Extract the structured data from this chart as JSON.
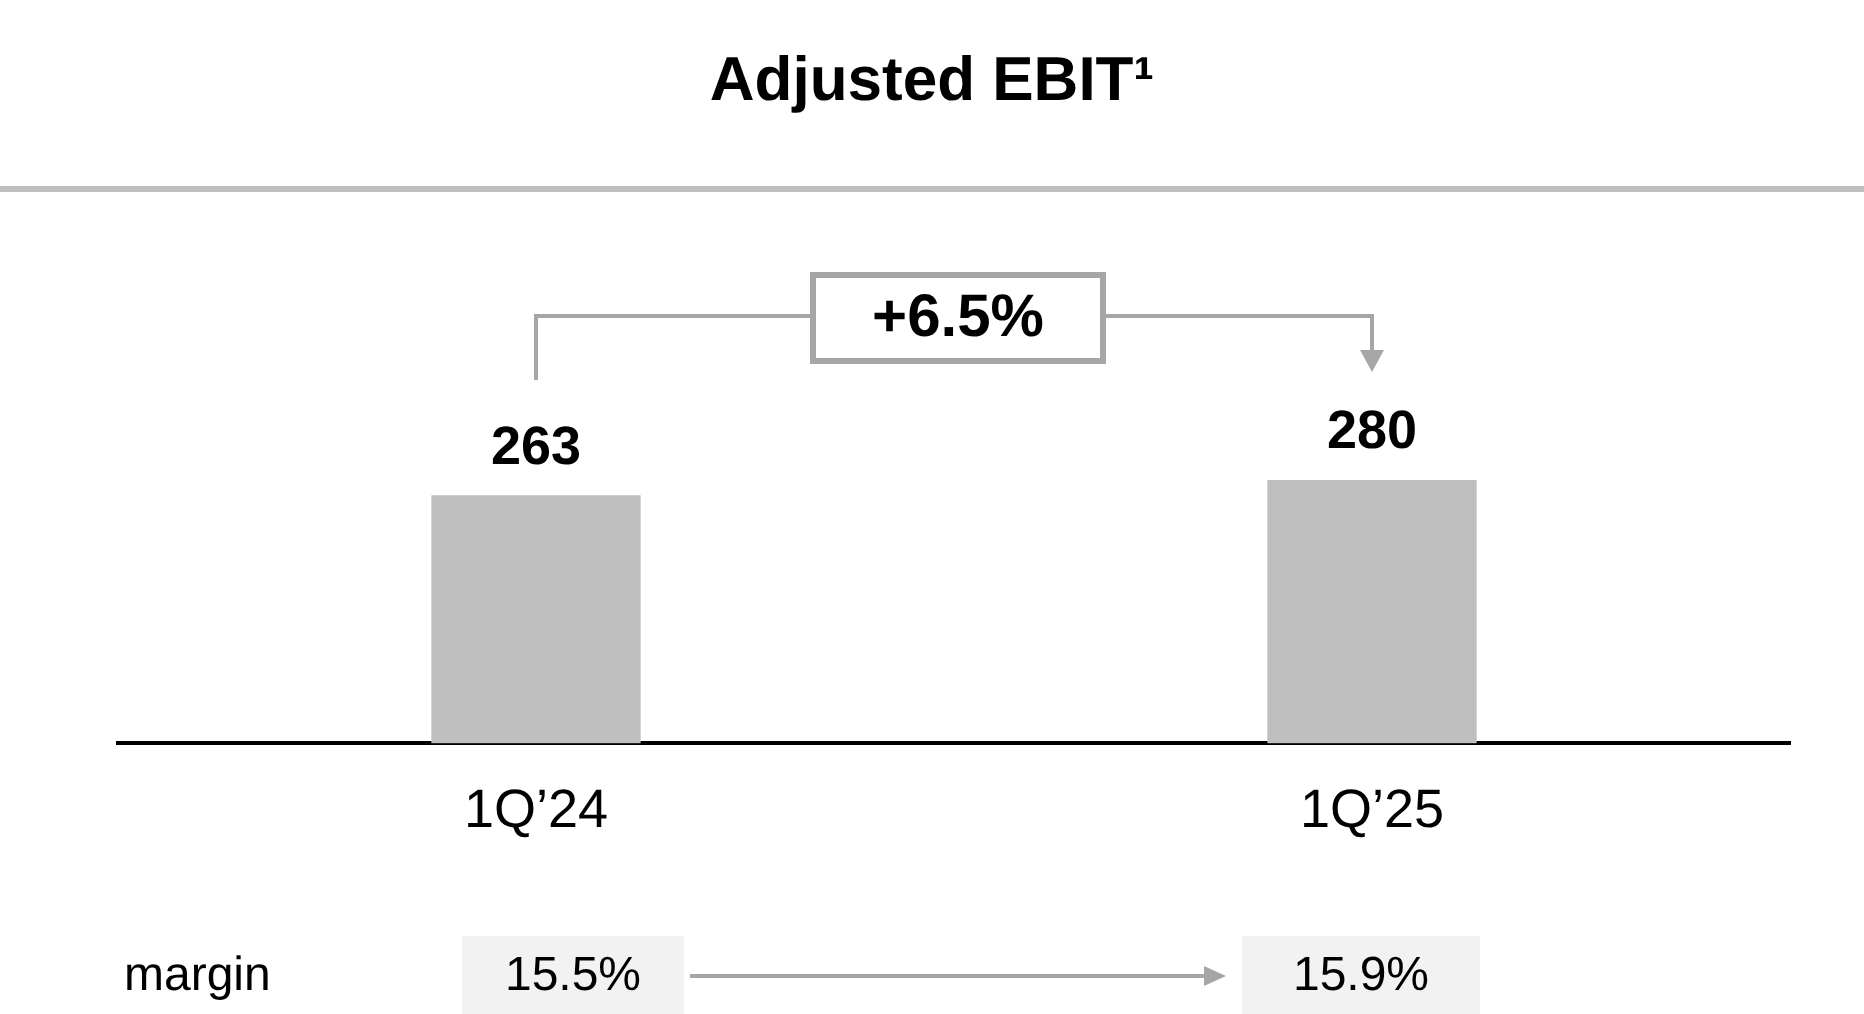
{
  "chart_data": {
    "type": "bar",
    "title": "Adjusted EBIT¹",
    "categories": [
      "1Q’24",
      "1Q’25"
    ],
    "values": [
      263,
      280
    ],
    "color": "#bfbfbf",
    "tick_labels": "x",
    "grid": false,
    "legend": false,
    "data_labels": true,
    "annotations": [
      "+6.5%",
      "margin",
      "15.5%",
      "15.9%"
    ]
  }
}
